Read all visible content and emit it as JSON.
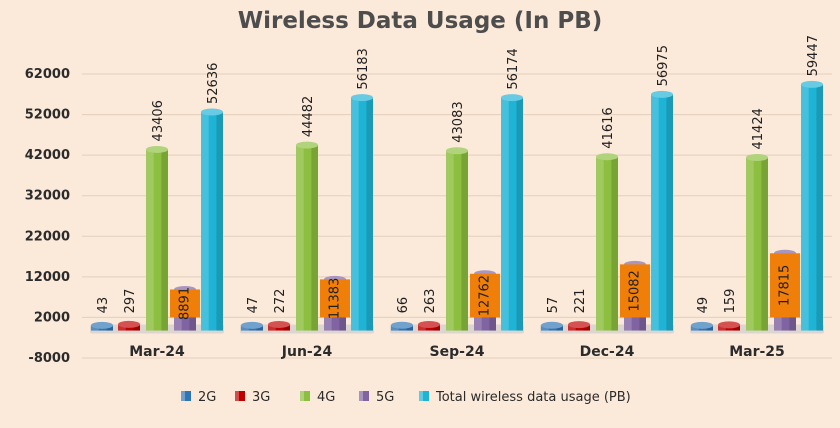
{
  "chart_data": {
    "type": "bar",
    "title": "Wireless Data Usage (In PB)",
    "categories": [
      "Mar-24",
      "Jun-24",
      "Sep-24",
      "Dec-24",
      "Mar-25"
    ],
    "series": [
      {
        "name": "2G",
        "color": "#2e75b6",
        "values": [
          43,
          47,
          66,
          57,
          49
        ]
      },
      {
        "name": "3G",
        "color": "#c00000",
        "values": [
          297,
          272,
          263,
          221,
          159
        ]
      },
      {
        "name": "4G",
        "color": "#8cbf3f",
        "values": [
          43406,
          44482,
          43083,
          41616,
          41424
        ]
      },
      {
        "name": "5G",
        "color": "#8064a2",
        "values": [
          8891,
          11383,
          12762,
          15082,
          17815
        ]
      },
      {
        "name": "Total wireless data usage (PB)",
        "color": "#1fb3d6",
        "values": [
          52636,
          56183,
          56174,
          56975,
          59447
        ]
      }
    ],
    "yticks": [
      -8000,
      2000,
      12000,
      22000,
      32000,
      42000,
      52000,
      62000
    ],
    "ylim": [
      -8000,
      62000
    ],
    "grid": true,
    "legend_position": "bottom",
    "label_box_color": "#f07f09"
  }
}
